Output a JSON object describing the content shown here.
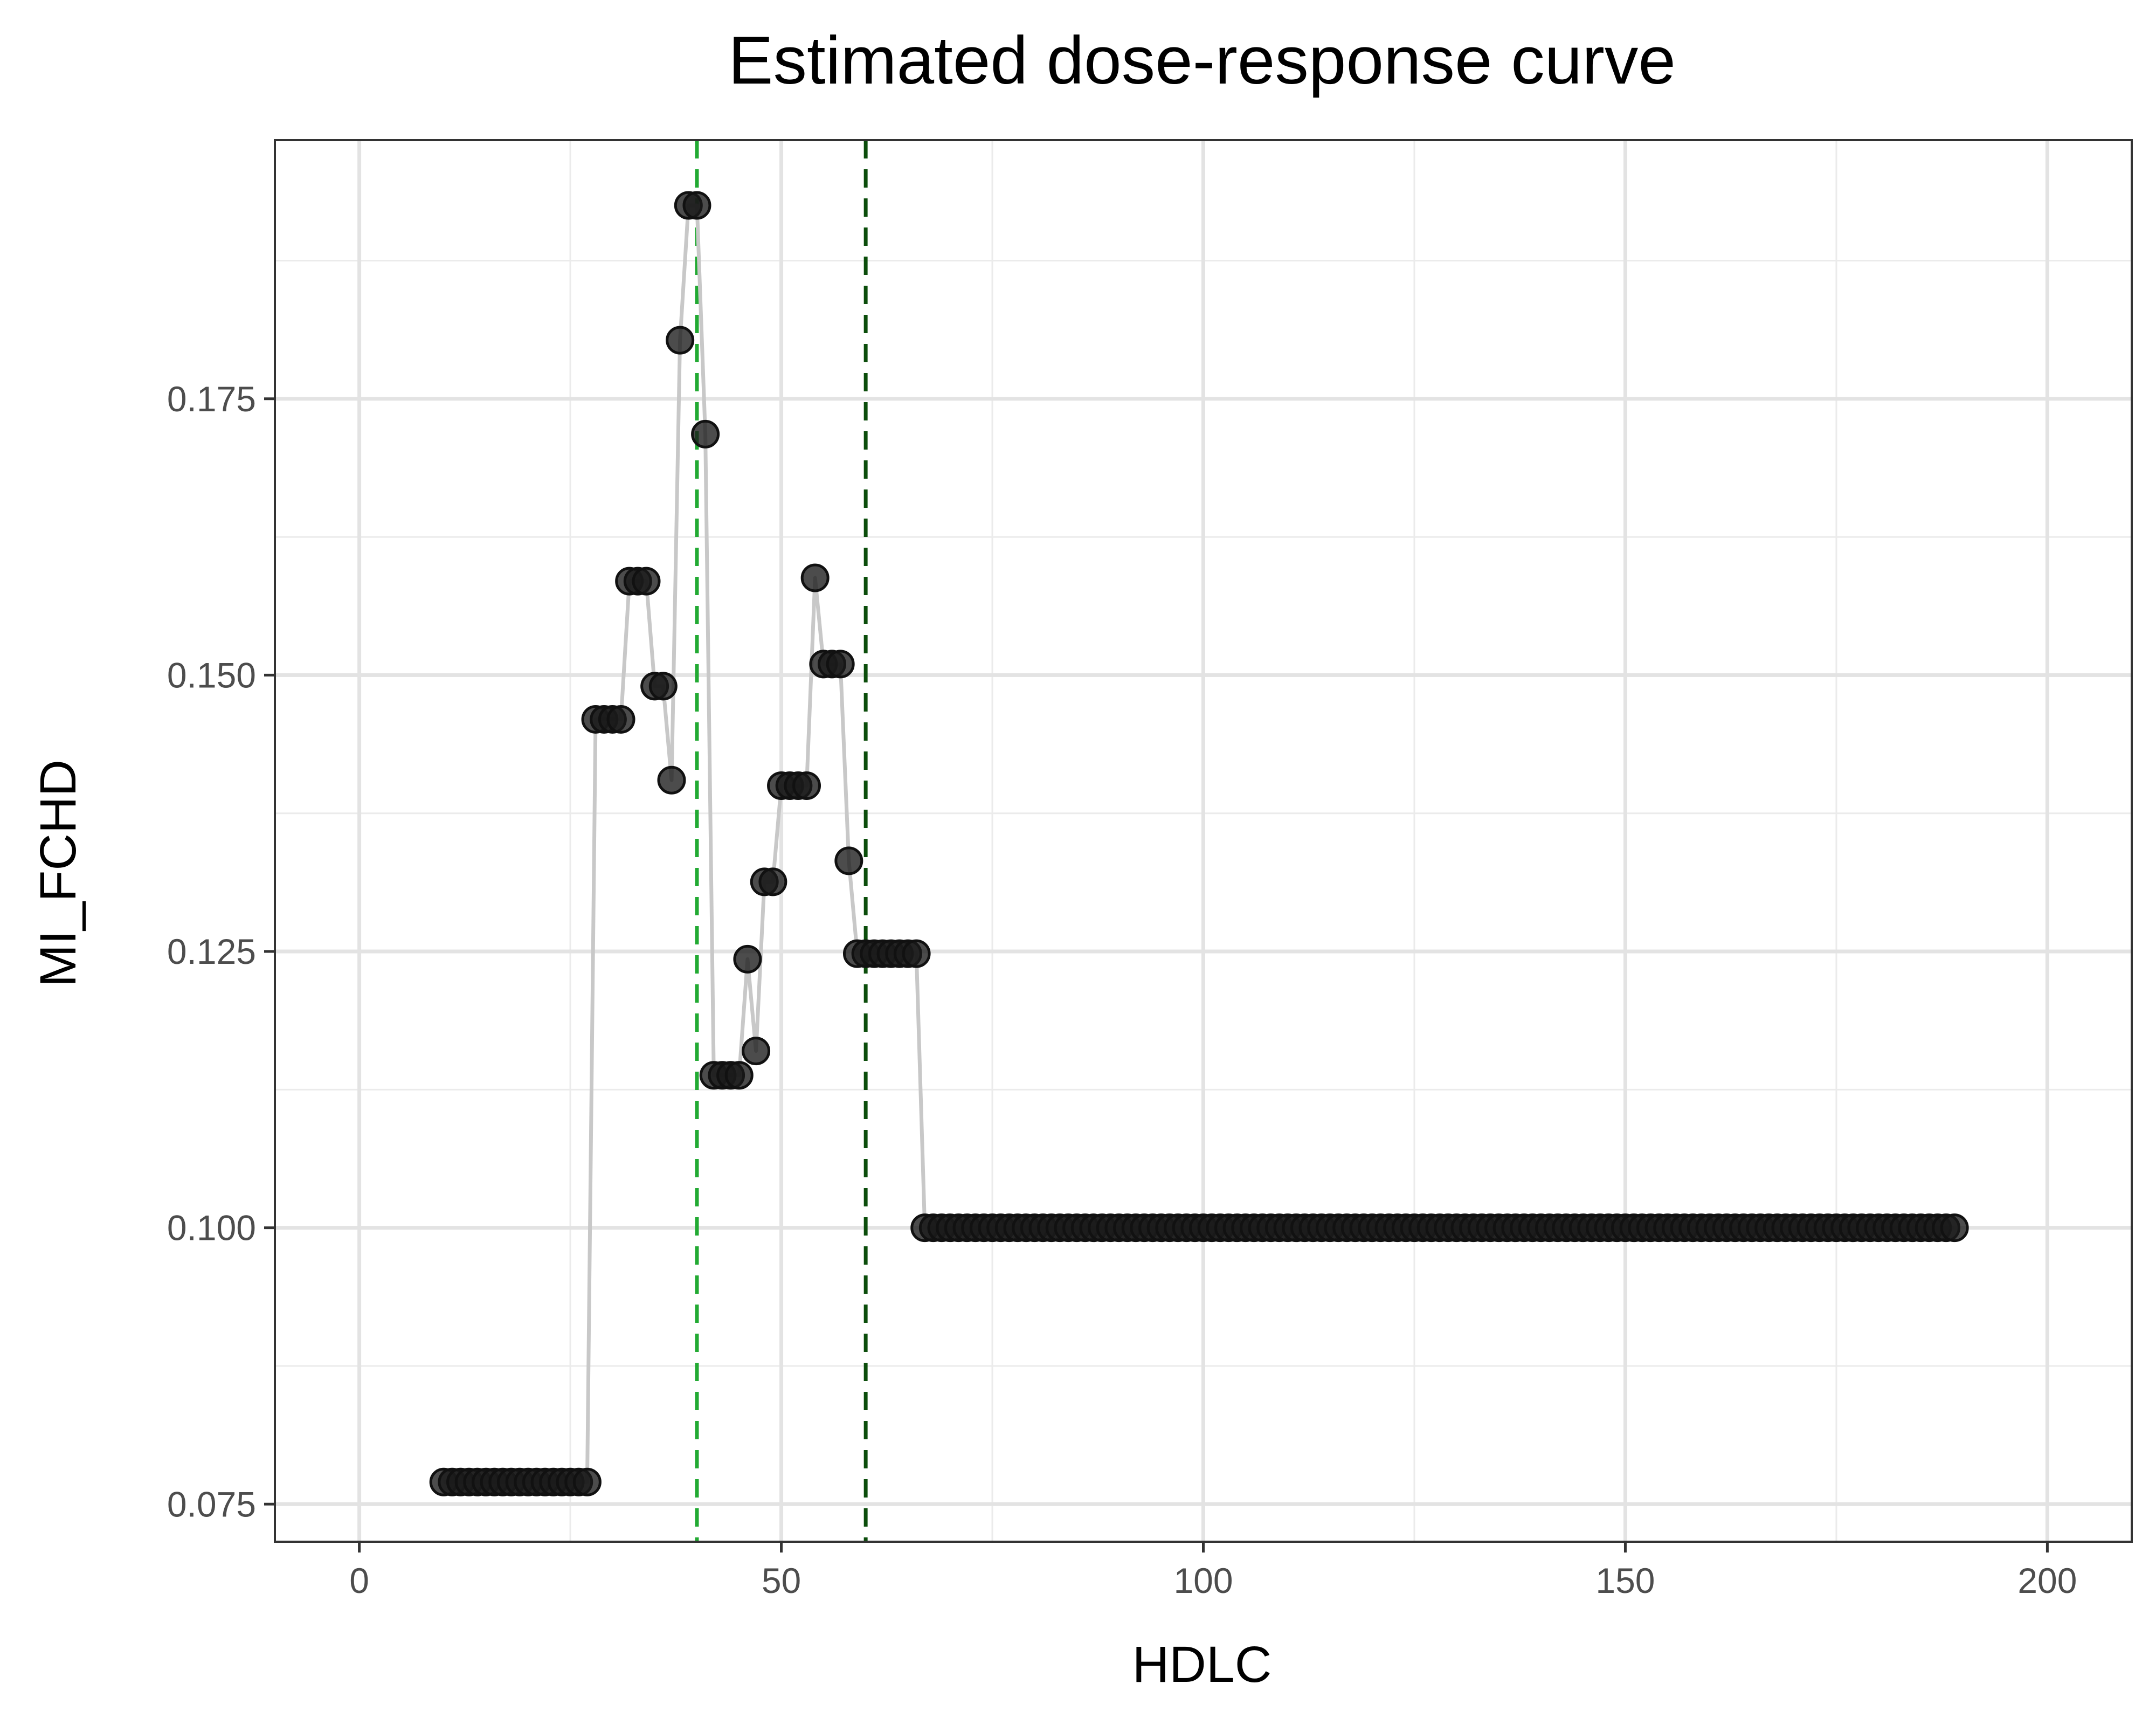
{
  "chart_data": {
    "type": "scatter",
    "title": "Estimated dose-response curve",
    "xlabel": "HDLC",
    "ylabel": "MI_FCHD",
    "xlim": [
      -10,
      210
    ],
    "ylim": [
      0.0716,
      0.1984
    ],
    "x_ticks": [
      0,
      50,
      100,
      150,
      200
    ],
    "x_tick_labels": [
      "0",
      "50",
      "100",
      "150",
      "200"
    ],
    "y_ticks": [
      0.075,
      0.1,
      0.125,
      0.15,
      0.175
    ],
    "y_tick_labels": [
      "0.075",
      "0.100",
      "0.125",
      "0.150",
      "0.175"
    ],
    "grid": true,
    "theme": "bw",
    "line_color": "#c8c8c8",
    "point_color": "#1a1a1a",
    "segments": [
      {
        "x_from": 10,
        "x_to": 27,
        "y": 0.077
      },
      {
        "x_from": 28,
        "x_to": 31,
        "y": 0.146
      },
      {
        "x_from": 32,
        "x_to": 34,
        "y": 0.1585
      },
      {
        "x_from": 35,
        "x_to": 36,
        "y": 0.149
      },
      {
        "x_from": 37,
        "x_to": 37,
        "y": 0.1405
      },
      {
        "x_from": 38,
        "x_to": 38,
        "y": 0.1803
      },
      {
        "x_from": 39,
        "x_to": 40,
        "y": 0.1925
      },
      {
        "x_from": 41,
        "x_to": 41,
        "y": 0.1718
      },
      {
        "x_from": 42,
        "x_to": 45,
        "y": 0.1138
      },
      {
        "x_from": 46,
        "x_to": 46,
        "y": 0.1243
      },
      {
        "x_from": 47,
        "x_to": 47,
        "y": 0.116
      },
      {
        "x_from": 48,
        "x_to": 49,
        "y": 0.1313
      },
      {
        "x_from": 50,
        "x_to": 53,
        "y": 0.14
      },
      {
        "x_from": 54,
        "x_to": 54,
        "y": 0.1588
      },
      {
        "x_from": 55,
        "x_to": 57,
        "y": 0.151
      },
      {
        "x_from": 58,
        "x_to": 58,
        "y": 0.1332
      },
      {
        "x_from": 59,
        "x_to": 66,
        "y": 0.1248
      },
      {
        "x_from": 67,
        "x_to": 189,
        "y": 0.1
      }
    ],
    "reference_lines": [
      {
        "x": 40,
        "color": "#22aa33",
        "style": "dashed"
      },
      {
        "x": 60,
        "color": "#0b4d0b",
        "style": "dashed"
      }
    ]
  }
}
